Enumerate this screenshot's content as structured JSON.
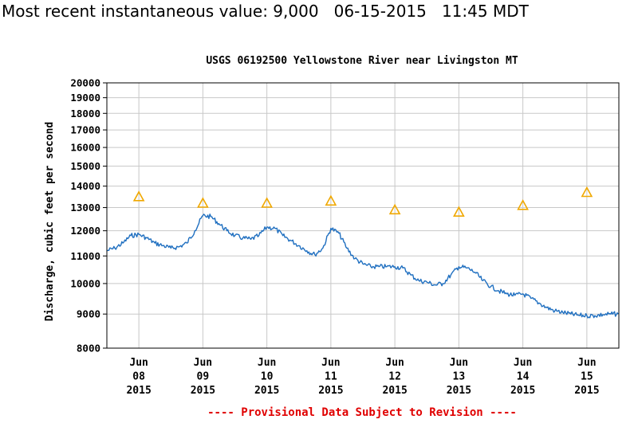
{
  "header": {
    "instantaneous_label": "Most recent instantaneous value:",
    "instantaneous_value": "9,000",
    "date": "06-15-2015",
    "time": "11:45 MDT"
  },
  "colors": {
    "series": "#1f6fc0",
    "median": "#f0a800",
    "grid": "#c8c8c8",
    "footnote": "#e00000"
  },
  "chart_data": {
    "type": "line",
    "title": "USGS 06192500 Yellowstone River near Livingston MT",
    "ylabel": "Discharge, cubic feet per second",
    "y_scale": "log",
    "ylim": [
      8000,
      20000
    ],
    "y_ticks": [
      {
        "value": 8000,
        "label": "8000"
      },
      {
        "value": 9000,
        "label": "9000"
      },
      {
        "value": 10000,
        "label": "10000"
      },
      {
        "value": 11000,
        "label": "11000"
      },
      {
        "value": 12000,
        "label": "12000"
      },
      {
        "value": 13000,
        "label": "13000"
      },
      {
        "value": 14000,
        "label": "14000"
      },
      {
        "value": 15000,
        "label": "15000"
      },
      {
        "value": 16000,
        "label": "16000"
      },
      {
        "value": 17000,
        "label": "17000"
      },
      {
        "value": 18000,
        "label": "18000"
      },
      {
        "value": 19000,
        "label": "19000"
      },
      {
        "value": 20000,
        "label": "20000"
      }
    ],
    "xlim": [
      "2015-06-07 12:00",
      "2015-06-15 12:00"
    ],
    "x_ticks": [
      {
        "x": "2015-06-08 00:00",
        "month": "Jun",
        "day": "08",
        "year": "2015"
      },
      {
        "x": "2015-06-09 00:00",
        "month": "Jun",
        "day": "09",
        "year": "2015"
      },
      {
        "x": "2015-06-10 00:00",
        "month": "Jun",
        "day": "10",
        "year": "2015"
      },
      {
        "x": "2015-06-11 00:00",
        "month": "Jun",
        "day": "11",
        "year": "2015"
      },
      {
        "x": "2015-06-12 00:00",
        "month": "Jun",
        "day": "12",
        "year": "2015"
      },
      {
        "x": "2015-06-13 00:00",
        "month": "Jun",
        "day": "13",
        "year": "2015"
      },
      {
        "x": "2015-06-14 00:00",
        "month": "Jun",
        "day": "14",
        "year": "2015"
      },
      {
        "x": "2015-06-15 00:00",
        "month": "Jun",
        "day": "15",
        "year": "2015"
      }
    ],
    "grid": true,
    "series": [
      {
        "points": [
          {
            "x": "2015-06-07 12:00",
            "y": 11200
          },
          {
            "x": "2015-06-07 15:00",
            "y": 11300
          },
          {
            "x": "2015-06-07 18:00",
            "y": 11500
          },
          {
            "x": "2015-06-07 21:00",
            "y": 11800
          },
          {
            "x": "2015-06-08 00:00",
            "y": 11850
          },
          {
            "x": "2015-06-08 03:00",
            "y": 11700
          },
          {
            "x": "2015-06-08 06:00",
            "y": 11500
          },
          {
            "x": "2015-06-08 09:00",
            "y": 11400
          },
          {
            "x": "2015-06-08 12:00",
            "y": 11300
          },
          {
            "x": "2015-06-08 15:00",
            "y": 11350
          },
          {
            "x": "2015-06-08 18:00",
            "y": 11500
          },
          {
            "x": "2015-06-08 21:00",
            "y": 12000
          },
          {
            "x": "2015-06-09 00:00",
            "y": 12650
          },
          {
            "x": "2015-06-09 03:00",
            "y": 12600
          },
          {
            "x": "2015-06-09 06:00",
            "y": 12300
          },
          {
            "x": "2015-06-09 09:00",
            "y": 12000
          },
          {
            "x": "2015-06-09 12:00",
            "y": 11800
          },
          {
            "x": "2015-06-09 15:00",
            "y": 11700
          },
          {
            "x": "2015-06-09 18:00",
            "y": 11650
          },
          {
            "x": "2015-06-09 21:00",
            "y": 11800
          },
          {
            "x": "2015-06-10 00:00",
            "y": 12150
          },
          {
            "x": "2015-06-10 03:00",
            "y": 12100
          },
          {
            "x": "2015-06-10 06:00",
            "y": 11800
          },
          {
            "x": "2015-06-10 09:00",
            "y": 11600
          },
          {
            "x": "2015-06-10 12:00",
            "y": 11400
          },
          {
            "x": "2015-06-10 15:00",
            "y": 11200
          },
          {
            "x": "2015-06-10 18:00",
            "y": 11050
          },
          {
            "x": "2015-06-10 21:00",
            "y": 11300
          },
          {
            "x": "2015-06-11 00:00",
            "y": 12100
          },
          {
            "x": "2015-06-11 03:00",
            "y": 11900
          },
          {
            "x": "2015-06-11 06:00",
            "y": 11300
          },
          {
            "x": "2015-06-11 09:00",
            "y": 10900
          },
          {
            "x": "2015-06-11 12:00",
            "y": 10700
          },
          {
            "x": "2015-06-11 15:00",
            "y": 10600
          },
          {
            "x": "2015-06-11 18:00",
            "y": 10600
          },
          {
            "x": "2015-06-11 21:00",
            "y": 10600
          },
          {
            "x": "2015-06-12 00:00",
            "y": 10600
          },
          {
            "x": "2015-06-12 03:00",
            "y": 10550
          },
          {
            "x": "2015-06-12 06:00",
            "y": 10300
          },
          {
            "x": "2015-06-12 09:00",
            "y": 10100
          },
          {
            "x": "2015-06-12 12:00",
            "y": 10050
          },
          {
            "x": "2015-06-12 15:00",
            "y": 9950
          },
          {
            "x": "2015-06-12 18:00",
            "y": 10000
          },
          {
            "x": "2015-06-12 21:00",
            "y": 10300
          },
          {
            "x": "2015-06-13 00:00",
            "y": 10600
          },
          {
            "x": "2015-06-13 03:00",
            "y": 10550
          },
          {
            "x": "2015-06-13 06:00",
            "y": 10400
          },
          {
            "x": "2015-06-13 09:00",
            "y": 10100
          },
          {
            "x": "2015-06-13 12:00",
            "y": 9900
          },
          {
            "x": "2015-06-13 15:00",
            "y": 9750
          },
          {
            "x": "2015-06-13 18:00",
            "y": 9650
          },
          {
            "x": "2015-06-13 21:00",
            "y": 9600
          },
          {
            "x": "2015-06-14 00:00",
            "y": 9650
          },
          {
            "x": "2015-06-14 03:00",
            "y": 9500
          },
          {
            "x": "2015-06-14 06:00",
            "y": 9350
          },
          {
            "x": "2015-06-14 09:00",
            "y": 9200
          },
          {
            "x": "2015-06-14 12:00",
            "y": 9100
          },
          {
            "x": "2015-06-14 15:00",
            "y": 9050
          },
          {
            "x": "2015-06-14 18:00",
            "y": 9000
          },
          {
            "x": "2015-06-14 21:00",
            "y": 8960
          },
          {
            "x": "2015-06-15 00:00",
            "y": 8950
          },
          {
            "x": "2015-06-15 03:00",
            "y": 8950
          },
          {
            "x": "2015-06-15 06:00",
            "y": 8980
          },
          {
            "x": "2015-06-15 09:00",
            "y": 9000
          },
          {
            "x": "2015-06-15 11:45",
            "y": 9000
          }
        ]
      },
      {
        "marker": "triangle",
        "points": [
          {
            "x": "2015-06-08 00:00",
            "y": 13500
          },
          {
            "x": "2015-06-09 00:00",
            "y": 13200
          },
          {
            "x": "2015-06-10 00:00",
            "y": 13200
          },
          {
            "x": "2015-06-11 00:00",
            "y": 13300
          },
          {
            "x": "2015-06-12 00:00",
            "y": 12900
          },
          {
            "x": "2015-06-13 00:00",
            "y": 12800
          },
          {
            "x": "2015-06-14 00:00",
            "y": 13100
          },
          {
            "x": "2015-06-15 00:00",
            "y": 13700
          }
        ]
      }
    ],
    "footnote": "---- Provisional Data Subject to Revision ----"
  }
}
